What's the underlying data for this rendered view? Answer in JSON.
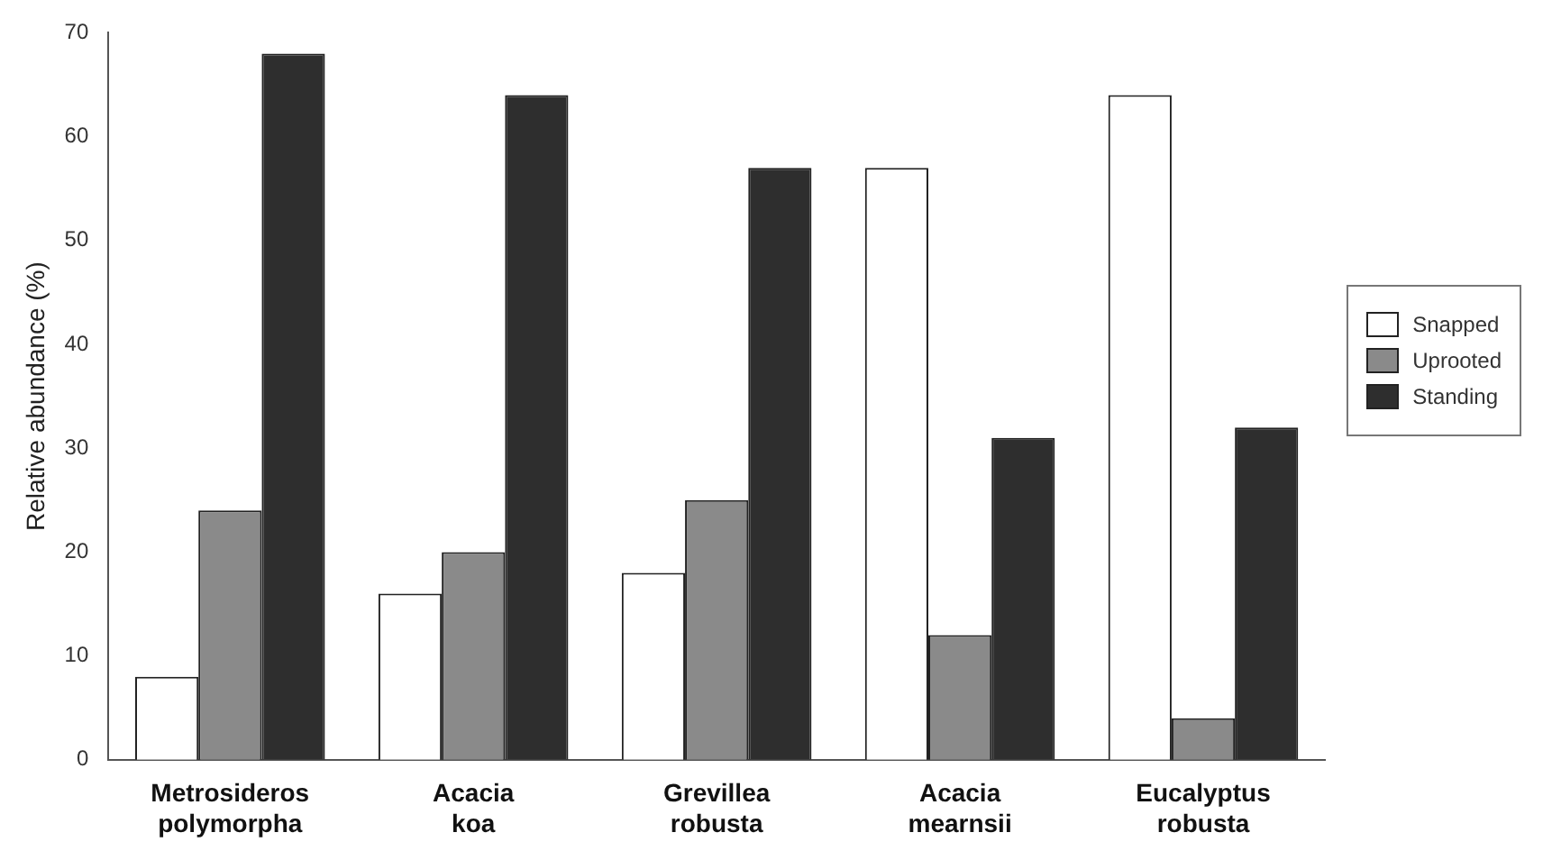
{
  "chart_data": {
    "type": "bar",
    "ylabel": "Relative abundance (%)",
    "categories": [
      "Metrosideros polymorpha",
      "Acacia koa",
      "Grevillea robusta",
      "Acacia mearnsii",
      "Eucalyptus robusta"
    ],
    "series": [
      {
        "name": "Snapped",
        "color": "#ffffff",
        "values": [
          8,
          16,
          18,
          57,
          64
        ]
      },
      {
        "name": "Uprooted",
        "color": "#8a8a8a",
        "values": [
          24,
          20,
          25,
          12,
          4
        ]
      },
      {
        "name": "Standing",
        "color": "#2e2e2e",
        "values": [
          68,
          64,
          57,
          31,
          32
        ]
      }
    ],
    "ylim": [
      0,
      70
    ],
    "yticks": [
      0,
      10,
      20,
      30,
      40,
      50,
      60,
      70
    ],
    "grid": false,
    "legend": "right"
  }
}
